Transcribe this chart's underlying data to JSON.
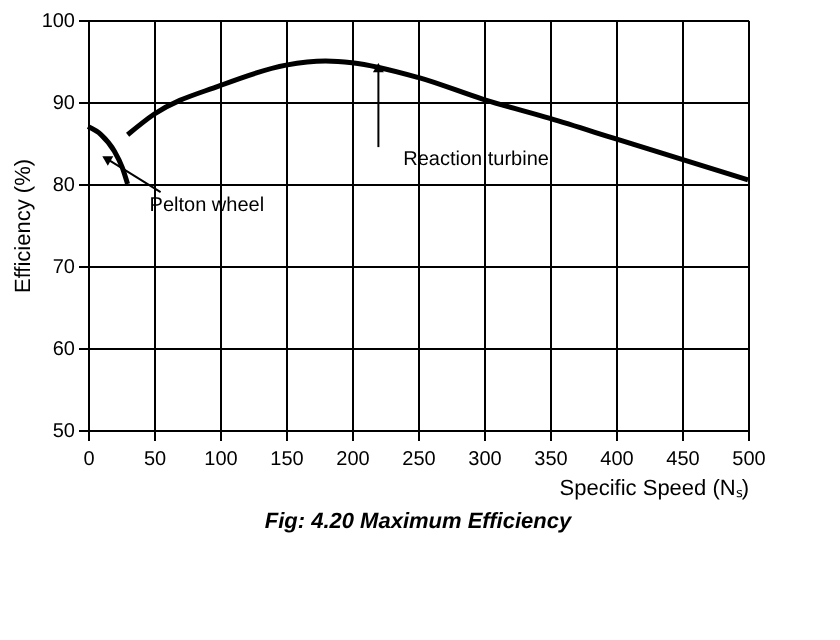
{
  "chart_data": {
    "type": "line",
    "title": "Fig: 4.20 Maximum Efficiency",
    "xlabel": "Specific Speed (Nₛ)",
    "ylabel": "Efficiency (%)",
    "xlim": [
      0,
      500
    ],
    "ylim": [
      50,
      100
    ],
    "xticks": [
      0,
      50,
      100,
      150,
      200,
      250,
      300,
      350,
      400,
      450,
      500
    ],
    "yticks": [
      50,
      60,
      70,
      80,
      90,
      100
    ],
    "grid": true,
    "marker": "none",
    "line_style": "solid",
    "series": [
      {
        "color": "#000000",
        "x": [
          0,
          10,
          20,
          26,
          30
        ],
        "values": [
          87,
          86,
          84,
          82,
          80
        ]
      },
      {
        "color": "#000000",
        "x": [
          30,
          50,
          100,
          150,
          180,
          200,
          250,
          300,
          350,
          400,
          450,
          500
        ],
        "values": [
          86,
          88.5,
          92,
          94.5,
          95,
          94.8,
          93,
          90.3,
          88,
          85.5,
          83,
          80.5
        ]
      }
    ],
    "annotations": [
      {
        "text": "Pelton wheel",
        "x": 15,
        "y": 83
      },
      {
        "text": "Reaction turbine",
        "x": 220,
        "y": 94
      }
    ]
  }
}
